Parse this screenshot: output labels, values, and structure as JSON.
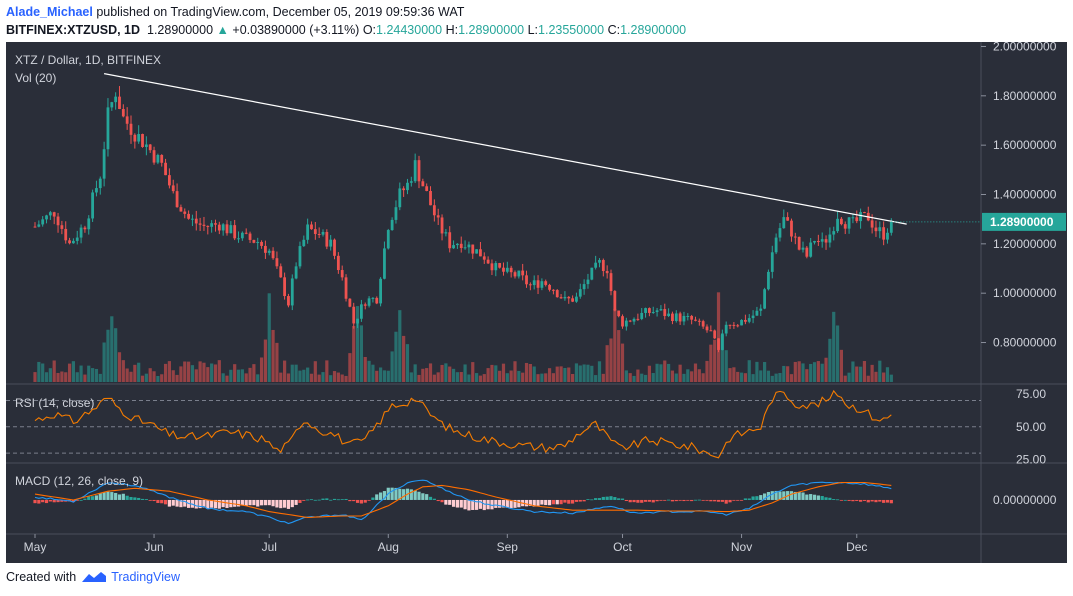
{
  "header": {
    "author": "Alade_Michael",
    "published": "published on TradingView.com, December 05, 2019 09:59:36 WAT",
    "symbol": "BITFINEX:XTZUSD, 1D",
    "last": "1.28900000",
    "change_arrow": "▲",
    "change": "+0.03890000 (+3.11%)",
    "o_label": "O:",
    "o": "1.24430000",
    "h_label": "H:",
    "h": "1.28900000",
    "l_label": "L:",
    "l": "1.23550000",
    "c_label": "C:",
    "c": "1.28900000"
  },
  "legend": {
    "title": "XTZ / Dollar, 1D, BITFINEX",
    "volume": "Vol (20)",
    "rsi": "RSI (14, close)",
    "macd": "MACD (12, 26, close, 9)"
  },
  "price_tag": "1.28900000",
  "footer": {
    "created_with": "Created with",
    "brand": "TradingView"
  },
  "colors": {
    "up": "#26a69a",
    "down": "#ef5350",
    "background": "#2a2e39",
    "trendline": "#ffffff",
    "rsi": "#f57c00",
    "macd": "#2196f3",
    "signal": "#ff6d00"
  },
  "chart_data": [
    {
      "type": "candlestick",
      "title": "XTZ / Dollar, 1D, BITFINEX",
      "x_ticks": [
        "May",
        "Jun",
        "Jul",
        "Aug",
        "Sep",
        "Oct",
        "Nov",
        "Dec"
      ],
      "x_tick_days": [
        0,
        31,
        61,
        92,
        123,
        153,
        184,
        214
      ],
      "y_ticks": [
        "2.00000000",
        "1.80000000",
        "1.60000000",
        "1.40000000",
        "1.20000000",
        "1.00000000",
        "0.80000000"
      ],
      "ylim": [
        0.64,
        2.01
      ],
      "trendline": [
        [
          18,
          1.89
        ],
        [
          227,
          1.28
        ]
      ],
      "close_points": [
        [
          0,
          1.27
        ],
        [
          5,
          1.33
        ],
        [
          9,
          1.2
        ],
        [
          13,
          1.28
        ],
        [
          17,
          1.48
        ],
        [
          19,
          1.72
        ],
        [
          21,
          1.82
        ],
        [
          23,
          1.71
        ],
        [
          26,
          1.65
        ],
        [
          29,
          1.6
        ],
        [
          33,
          1.52
        ],
        [
          36,
          1.4
        ],
        [
          40,
          1.3
        ],
        [
          44,
          1.27
        ],
        [
          48,
          1.28
        ],
        [
          52,
          1.24
        ],
        [
          55,
          1.22
        ],
        [
          58,
          1.21
        ],
        [
          61,
          1.17
        ],
        [
          64,
          1.05
        ],
        [
          66,
          0.96
        ],
        [
          68,
          1.12
        ],
        [
          71,
          1.26
        ],
        [
          74,
          1.24
        ],
        [
          77,
          1.2
        ],
        [
          80,
          1.06
        ],
        [
          83,
          0.88
        ],
        [
          86,
          0.97
        ],
        [
          89,
          0.98
        ],
        [
          92,
          1.28
        ],
        [
          95,
          1.4
        ],
        [
          97,
          1.44
        ],
        [
          99,
          1.52
        ],
        [
          101,
          1.44
        ],
        [
          103,
          1.36
        ],
        [
          105,
          1.28
        ],
        [
          108,
          1.2
        ],
        [
          111,
          1.21
        ],
        [
          114,
          1.18
        ],
        [
          117,
          1.15
        ],
        [
          120,
          1.1
        ],
        [
          123,
          1.08
        ],
        [
          126,
          1.07
        ],
        [
          129,
          1.03
        ],
        [
          132,
          1.05
        ],
        [
          135,
          1.02
        ],
        [
          138,
          0.97
        ],
        [
          141,
          0.98
        ],
        [
          144,
          1.06
        ],
        [
          147,
          1.12
        ],
        [
          149,
          1.1
        ],
        [
          151,
          0.92
        ],
        [
          153,
          0.88
        ],
        [
          156,
          0.9
        ],
        [
          159,
          0.92
        ],
        [
          162,
          0.93
        ],
        [
          165,
          0.91
        ],
        [
          168,
          0.9
        ],
        [
          171,
          0.89
        ],
        [
          174,
          0.86
        ],
        [
          176,
          0.84
        ],
        [
          178,
          0.76
        ],
        [
          180,
          0.88
        ],
        [
          183,
          0.88
        ],
        [
          186,
          0.9
        ],
        [
          189,
          0.93
        ],
        [
          191,
          1.1
        ],
        [
          193,
          1.23
        ],
        [
          195,
          1.3
        ],
        [
          197,
          1.25
        ],
        [
          199,
          1.18
        ],
        [
          201,
          1.15
        ],
        [
          203,
          1.22
        ],
        [
          205,
          1.2
        ],
        [
          207,
          1.24
        ],
        [
          209,
          1.32
        ],
        [
          211,
          1.29
        ],
        [
          213,
          1.28
        ],
        [
          215,
          1.3
        ],
        [
          217,
          1.31
        ],
        [
          219,
          1.26
        ],
        [
          221,
          1.24
        ],
        [
          223,
          1.29
        ]
      ],
      "volume_peak_days": [
        20,
        61,
        84,
        95,
        151,
        178,
        208
      ]
    },
    {
      "type": "line",
      "title": "RSI (14, close)",
      "y_ticks": [
        "75.00",
        "50.00",
        "25.00"
      ],
      "ylim": [
        24,
        81
      ],
      "bands": [
        70,
        50,
        30
      ],
      "series": [
        {
          "values": [
            [
              0,
              55
            ],
            [
              5,
              60
            ],
            [
              10,
              54
            ],
            [
              15,
              63
            ],
            [
              19,
              72
            ],
            [
              22,
              64
            ],
            [
              26,
              56
            ],
            [
              30,
              52
            ],
            [
              35,
              44
            ],
            [
              40,
              42
            ],
            [
              45,
              43
            ],
            [
              50,
              46
            ],
            [
              55,
              44
            ],
            [
              60,
              40
            ],
            [
              63,
              32
            ],
            [
              66,
              36
            ],
            [
              70,
              56
            ],
            [
              74,
              48
            ],
            [
              78,
              44
            ],
            [
              82,
              36
            ],
            [
              86,
              40
            ],
            [
              90,
              55
            ],
            [
              93,
              66
            ],
            [
              96,
              68
            ],
            [
              99,
              72
            ],
            [
              102,
              62
            ],
            [
              106,
              52
            ],
            [
              110,
              46
            ],
            [
              114,
              43
            ],
            [
              118,
              40
            ],
            [
              122,
              38
            ],
            [
              126,
              36
            ],
            [
              130,
              35
            ],
            [
              134,
              34
            ],
            [
              138,
              36
            ],
            [
              142,
              46
            ],
            [
              146,
              52
            ],
            [
              149,
              42
            ],
            [
              152,
              34
            ],
            [
              156,
              36
            ],
            [
              160,
              40
            ],
            [
              164,
              38
            ],
            [
              168,
              36
            ],
            [
              172,
              34
            ],
            [
              175,
              30
            ],
            [
              178,
              28
            ],
            [
              181,
              42
            ],
            [
              185,
              46
            ],
            [
              189,
              50
            ],
            [
              192,
              72
            ],
            [
              195,
              76
            ],
            [
              198,
              68
            ],
            [
              202,
              66
            ],
            [
              206,
              70
            ],
            [
              209,
              76
            ],
            [
              212,
              66
            ],
            [
              215,
              64
            ],
            [
              218,
              58
            ],
            [
              221,
              55
            ],
            [
              223,
              59
            ]
          ]
        }
      ]
    },
    {
      "type": "line",
      "title": "MACD (12, 26, close, 9)",
      "y_ticks": [
        "0.00000000"
      ],
      "ylim": [
        -0.11,
        0.12
      ],
      "series": [
        {
          "values": [
            [
              0,
              0.01
            ],
            [
              10,
              -0.005
            ],
            [
              19,
              0.06
            ],
            [
              26,
              0.05
            ],
            [
              35,
              0.01
            ],
            [
              45,
              -0.03
            ],
            [
              55,
              -0.04
            ],
            [
              61,
              -0.06
            ],
            [
              66,
              -0.08
            ],
            [
              71,
              -0.06
            ],
            [
              80,
              -0.05
            ],
            [
              85,
              -0.07
            ],
            [
              92,
              0.02
            ],
            [
              97,
              0.06
            ],
            [
              101,
              0.07
            ],
            [
              106,
              0.04
            ],
            [
              113,
              0.0
            ],
            [
              120,
              -0.02
            ],
            [
              130,
              -0.04
            ],
            [
              140,
              -0.045
            ],
            [
              150,
              -0.02
            ],
            [
              156,
              -0.045
            ],
            [
              165,
              -0.04
            ],
            [
              175,
              -0.04
            ],
            [
              180,
              -0.05
            ],
            [
              186,
              -0.03
            ],
            [
              192,
              0.02
            ],
            [
              197,
              0.05
            ],
            [
              204,
              0.06
            ],
            [
              210,
              0.06
            ],
            [
              216,
              0.055
            ],
            [
              223,
              0.04
            ]
          ]
        },
        {
          "values": [
            [
              0,
              0.02
            ],
            [
              10,
              0.0
            ],
            [
              19,
              0.03
            ],
            [
              26,
              0.04
            ],
            [
              35,
              0.03
            ],
            [
              45,
              0.0
            ],
            [
              55,
              -0.02
            ],
            [
              61,
              -0.04
            ],
            [
              66,
              -0.05
            ],
            [
              71,
              -0.06
            ],
            [
              80,
              -0.055
            ],
            [
              85,
              -0.055
            ],
            [
              92,
              -0.02
            ],
            [
              97,
              0.02
            ],
            [
              101,
              0.045
            ],
            [
              106,
              0.05
            ],
            [
              113,
              0.035
            ],
            [
              120,
              0.01
            ],
            [
              130,
              -0.02
            ],
            [
              140,
              -0.035
            ],
            [
              150,
              -0.035
            ],
            [
              156,
              -0.035
            ],
            [
              165,
              -0.038
            ],
            [
              175,
              -0.038
            ],
            [
              180,
              -0.04
            ],
            [
              186,
              -0.035
            ],
            [
              192,
              -0.01
            ],
            [
              197,
              0.02
            ],
            [
              204,
              0.045
            ],
            [
              210,
              0.06
            ],
            [
              216,
              0.06
            ],
            [
              223,
              0.05
            ]
          ]
        }
      ]
    }
  ]
}
